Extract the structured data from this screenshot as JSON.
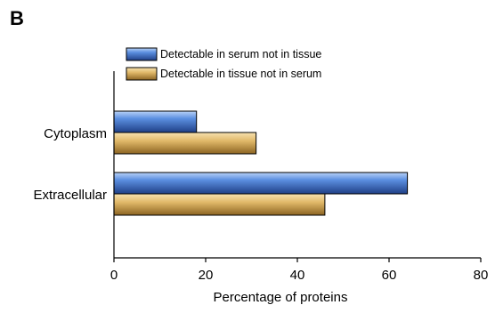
{
  "panel_label": "B",
  "chart_data": {
    "type": "bar",
    "orientation": "horizontal",
    "categories": [
      "Cytoplasm",
      "Extracellular"
    ],
    "series": [
      {
        "name": "Detectable in serum not in tissue",
        "values": [
          18,
          64
        ],
        "color": "#4a7fd6"
      },
      {
        "name": "Detectable in tissue not in serum",
        "values": [
          31,
          46
        ],
        "color": "#e0b868"
      }
    ],
    "xlabel": "Percentage of proteins",
    "xlim": [
      0,
      80
    ],
    "xticks": [
      0,
      20,
      40,
      60,
      80
    ],
    "legend": "top",
    "grid": false
  }
}
